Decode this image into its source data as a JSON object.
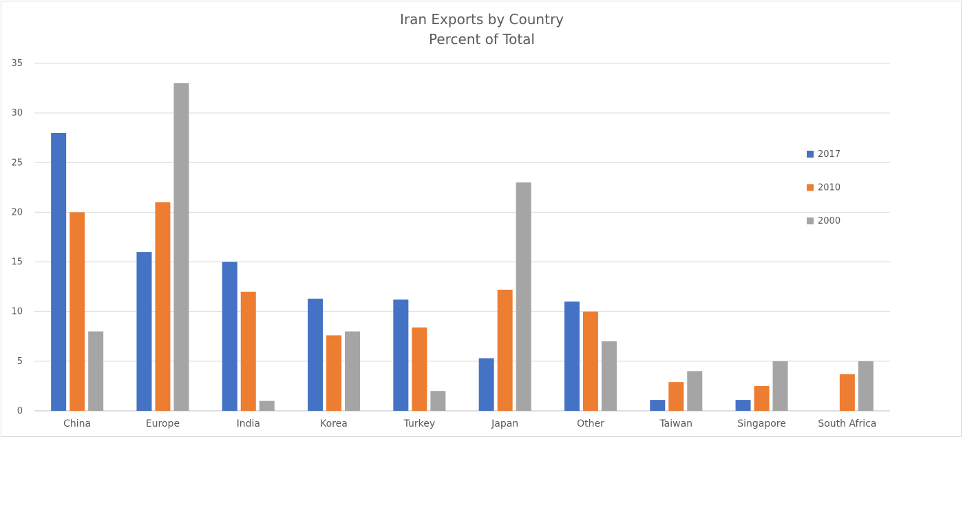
{
  "chart_data": {
    "type": "bar",
    "title": "Iran Exports by Country",
    "subtitle": "Percent of Total",
    "xlabel": "",
    "ylabel": "",
    "categories": [
      "China",
      "Europe",
      "India",
      "Korea",
      "Turkey",
      "Japan",
      "Other",
      "Taiwan",
      "Singapore",
      "South Africa"
    ],
    "series": [
      {
        "name": "2017",
        "color": "#4472c4",
        "values": [
          28,
          16,
          15,
          11.3,
          11.2,
          5.3,
          11,
          1.1,
          1.1,
          0
        ]
      },
      {
        "name": "2010",
        "color": "#ed7d31",
        "values": [
          20,
          21,
          12,
          7.6,
          8.4,
          12.2,
          10,
          2.9,
          2.5,
          3.7
        ]
      },
      {
        "name": "2000",
        "color": "#a5a5a5",
        "values": [
          8,
          33,
          1,
          8,
          2,
          23,
          7,
          4,
          5,
          5
        ]
      }
    ],
    "ylim": [
      0,
      35
    ],
    "yticks": [
      0,
      5,
      10,
      15,
      20,
      25,
      30,
      35
    ],
    "grid": true,
    "legend_position": "right"
  }
}
